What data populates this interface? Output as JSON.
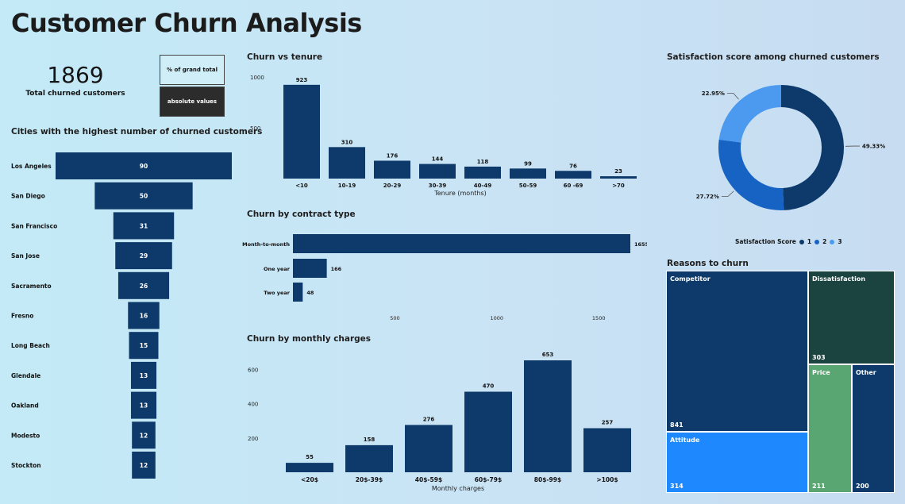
{
  "header": {
    "title": "Customer Churn Analysis"
  },
  "kpi": {
    "value": "1869",
    "label": "Total churned customers"
  },
  "toggles": {
    "pct_label": "% of grand total",
    "abs_label": "absolute values"
  },
  "colors": {
    "navy": "#0d3a6b",
    "blue_mid": "#1763c4",
    "blue_light": "#4b9af0",
    "attitude": "#1e88ff",
    "dissatisfaction": "#1b4340",
    "price": "#5aa672"
  },
  "chart_data": [
    {
      "id": "cities",
      "type": "bar",
      "orientation": "horizontal-funnel",
      "title": "Cities with the highest number of churned customers",
      "categories": [
        "Los Angeles",
        "San Diego",
        "San Francisco",
        "San Jose",
        "Sacramento",
        "Fresno",
        "Long Beach",
        "Glendale",
        "Oakland",
        "Modesto",
        "Stockton"
      ],
      "values": [
        90,
        50,
        31,
        29,
        26,
        16,
        15,
        13,
        13,
        12,
        12
      ]
    },
    {
      "id": "tenure",
      "type": "bar",
      "title": "Churn vs tenure",
      "xlabel": "Tenure (months)",
      "ylabel": "",
      "categories": [
        "<10",
        "10-19",
        "20-29",
        "30-39",
        "40-49",
        "50-59",
        "60 -69",
        ">70"
      ],
      "values": [
        923,
        310,
        176,
        144,
        118,
        99,
        76,
        23
      ],
      "yticks": [
        1000,
        500
      ],
      "ylim": [
        0,
        1000
      ]
    },
    {
      "id": "contract",
      "type": "bar",
      "orientation": "horizontal",
      "title": "Churn by contract type",
      "categories": [
        "Month-to-month",
        "One year",
        "Two year"
      ],
      "values": [
        1655,
        166,
        48
      ],
      "xticks": [
        500,
        1000,
        1500
      ],
      "xlim": [
        0,
        1655
      ]
    },
    {
      "id": "monthly",
      "type": "bar",
      "title": "Churn by monthly charges",
      "xlabel": "Monthly charges",
      "ylabel": "",
      "categories": [
        "<20$",
        "20$-39$",
        "40$-59$",
        "60$-79$",
        "80$-99$",
        ">100$"
      ],
      "values": [
        55,
        158,
        276,
        470,
        653,
        257
      ],
      "yticks": [
        600,
        400,
        200
      ],
      "ylim": [
        0,
        653
      ]
    },
    {
      "id": "satisfaction",
      "type": "pie",
      "style": "donut",
      "title": "Satisfaction score among churned customers",
      "legend_title": "Satisfaction Score",
      "categories": [
        "1",
        "2",
        "3"
      ],
      "values": [
        49.33,
        27.72,
        22.95
      ],
      "labels": [
        "49.33%",
        "27.72%",
        "22.95%"
      ],
      "colors": [
        "#0d3a6b",
        "#1763c4",
        "#4b9af0"
      ],
      "legend": "bottom"
    },
    {
      "id": "reasons",
      "type": "treemap",
      "title": "Reasons to churn",
      "categories": [
        "Competitor",
        "Dissatisfaction",
        "Attitude",
        "Price",
        "Other"
      ],
      "values": [
        841,
        303,
        314,
        211,
        200
      ]
    }
  ]
}
